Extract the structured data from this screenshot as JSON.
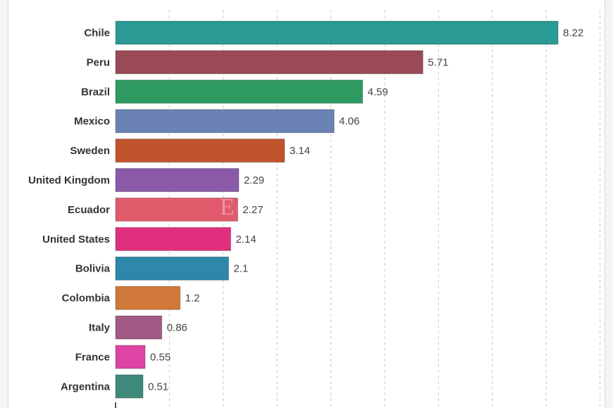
{
  "chart_data": {
    "type": "bar",
    "orientation": "horizontal",
    "categories": [
      "Chile",
      "Peru",
      "Brazil",
      "Mexico",
      "Sweden",
      "United Kingdom",
      "Ecuador",
      "United States",
      "Bolivia",
      "Colombia",
      "Italy",
      "France",
      "Argentina"
    ],
    "values": [
      8.22,
      5.71,
      4.59,
      4.06,
      3.14,
      2.29,
      2.27,
      2.14,
      2.1,
      1.2,
      0.86,
      0.55,
      0.51
    ],
    "value_labels": [
      "8.22",
      "5.71",
      "4.59",
      "4.06",
      "3.14",
      "2.29",
      "2.27",
      "2.14",
      "2.1",
      "1.2",
      "0.86",
      "0.55",
      "0.51"
    ],
    "colors": [
      "#2a9a94",
      "#9a4a56",
      "#2e9a62",
      "#6a82b4",
      "#c0532c",
      "#8a5aa8",
      "#e05a6c",
      "#e02f7c",
      "#2d88aa",
      "#d0783a",
      "#a05a84",
      "#dd44a4",
      "#3e8a7a"
    ],
    "xlim": [
      0,
      9
    ],
    "grid": true,
    "title": "",
    "xlabel": "",
    "ylabel": ""
  },
  "watermark": "E"
}
